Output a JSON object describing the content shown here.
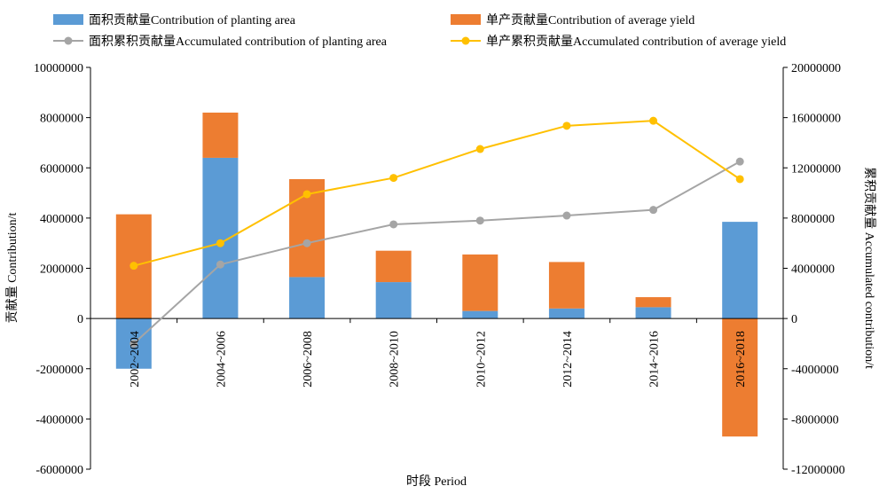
{
  "chart_data": {
    "type": "bar+line",
    "categories": [
      "2002~2004",
      "2004~2006",
      "2006~2008",
      "2008~2010",
      "2010~2012",
      "2012~2014",
      "2014~2016",
      "2016~2018"
    ],
    "bar_series": [
      {
        "name": "面积贡献量Contribution of planting area",
        "color": "#5b9bd5",
        "values": [
          -2000000,
          6400000,
          1650000,
          1450000,
          300000,
          400000,
          450000,
          3850000
        ]
      },
      {
        "name": "单产贡献量Contribution of average yield",
        "color": "#ed7d31",
        "values": [
          4150000,
          1800000,
          3900000,
          1250000,
          2250000,
          1850000,
          400000,
          -4700000
        ]
      }
    ],
    "line_series": [
      {
        "name": "面积累积贡献量Accumulated contribution of planting area",
        "color": "#a5a5a5",
        "values": [
          -2000000,
          4300000,
          6000000,
          7500000,
          7800000,
          8200000,
          8650000,
          12500000
        ]
      },
      {
        "name": "单产累积贡献量Accumulated contribution of average yield",
        "color": "#ffc000",
        "values": [
          4200000,
          6000000,
          9900000,
          11200000,
          13500000,
          15350000,
          15750000,
          11100000
        ]
      }
    ],
    "y_left": {
      "label": "贡献量 Contribution/t",
      "min": -6000000,
      "max": 10000000,
      "step": 2000000,
      "ticks": [
        "-6000000",
        "-4000000",
        "-2000000",
        "0",
        "2000000",
        "4000000",
        "6000000",
        "8000000",
        "10000000"
      ]
    },
    "y_right": {
      "label": "累积贡献量 Accumulated contribution/t",
      "min": -12000000,
      "max": 20000000,
      "step": 4000000,
      "ticks": [
        "-12000000",
        "-8000000",
        "-4000000",
        "0",
        "4000000",
        "8000000",
        "12000000",
        "16000000",
        "20000000"
      ]
    },
    "xlabel": "时段 Period",
    "legend_position": "top",
    "grid": false
  }
}
